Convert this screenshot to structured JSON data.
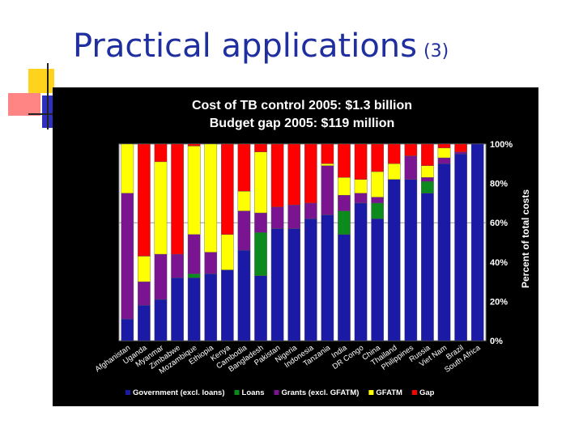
{
  "slide": {
    "title": "Practical applications",
    "title_suffix": "(3)"
  },
  "colors": {
    "background": "#000000",
    "government": "#1a1aa6",
    "loans": "#0c8a1e",
    "grants": "#7a1490",
    "gfatm": "#ffff00",
    "gap": "#ff0000",
    "text": "#ffffff",
    "deco_yellow": "#ffd21e",
    "deco_red": "#ff6666",
    "deco_blue": "#3030c0"
  },
  "chart_data": {
    "type": "bar",
    "stacked": true,
    "title_lines": [
      "Cost of TB control 2005: $1.3 billion",
      "Budget gap 2005: $119 million"
    ],
    "ylabel": "Percent of total costs",
    "y_ticks": [
      "0%",
      "20%",
      "40%",
      "60%",
      "80%",
      "100%"
    ],
    "ylim": [
      0,
      100
    ],
    "categories": [
      "Afghanistan",
      "Uganda",
      "Myanmar",
      "Zimbabwe",
      "Mozambique",
      "Ethiopia",
      "Kenya",
      "Cambodia",
      "Bangladesh",
      "Pakistan",
      "Nigeria",
      "Indonesia",
      "Tanzania",
      "India",
      "DR Congo",
      "China",
      "Thailand",
      "Philippines",
      "Russia",
      "Viet Nam",
      "Brazil",
      "South Africa"
    ],
    "series": [
      {
        "name": "Government (excl. loans)",
        "color_key": "government",
        "values": [
          11,
          18,
          21,
          32,
          32,
          34,
          36,
          46,
          33,
          57,
          57,
          62,
          64,
          54,
          70,
          62,
          82,
          82,
          75,
          90,
          95,
          100
        ]
      },
      {
        "name": "Loans",
        "color_key": "loans",
        "values": [
          0,
          0,
          0,
          0,
          2,
          0,
          0,
          0,
          22,
          0,
          0,
          0,
          0,
          12,
          0,
          8,
          0,
          0,
          6,
          0,
          0,
          0
        ]
      },
      {
        "name": "Grants (excl. GFATM)",
        "color_key": "grants",
        "values": [
          64,
          12,
          23,
          12,
          20,
          11,
          0,
          20,
          10,
          11,
          12,
          8,
          25,
          8,
          5,
          3,
          0,
          12,
          2,
          3,
          1,
          0
        ]
      },
      {
        "name": "GFATM",
        "color_key": "gfatm",
        "values": [
          25,
          13,
          47,
          0,
          45,
          55,
          18,
          10,
          31,
          0,
          0,
          0,
          1,
          9,
          7,
          13,
          8,
          0,
          6,
          5,
          0,
          0
        ]
      },
      {
        "name": "Gap",
        "color_key": "gap",
        "values": [
          0,
          57,
          9,
          56,
          1,
          0,
          46,
          24,
          4,
          32,
          31,
          30,
          10,
          17,
          18,
          14,
          10,
          6,
          11,
          2,
          4,
          0
        ]
      }
    ],
    "legend": [
      {
        "label": "Government (excl. loans)",
        "color_key": "government"
      },
      {
        "label": "Loans",
        "color_key": "loans"
      },
      {
        "label": "Grants (excl. GFATM)",
        "color_key": "grants"
      },
      {
        "label": "GFATM",
        "color_key": "gfatm"
      },
      {
        "label": "Gap",
        "color_key": "gap"
      }
    ],
    "legend_position": "bottom",
    "gridlines": true
  }
}
